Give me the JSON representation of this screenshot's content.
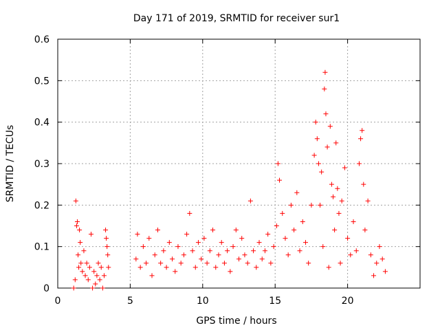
{
  "chart_data": {
    "type": "scatter",
    "title": "Day 171 of 2019, SRMTID for receiver sur1",
    "xlabel": "GPS time / hours",
    "ylabel": "SRMTID / TECUs",
    "xlim": [
      0,
      25
    ],
    "ylim": [
      0,
      0.6
    ],
    "xticks": [
      0,
      5,
      10,
      15,
      20
    ],
    "xtick_labels": [
      "0",
      "5",
      "10",
      "15",
      "20"
    ],
    "yticks": [
      0,
      0.1,
      0.2,
      0.3,
      0.4,
      0.5,
      0.6
    ],
    "ytick_labels": [
      "0",
      "0.1",
      "0.2",
      "0.3",
      "0.4",
      "0.5",
      "0.6"
    ],
    "grid": true,
    "marker": "+",
    "color": "#ff0000",
    "series": [
      {
        "name": "sur1",
        "points": [
          [
            1.1,
            0.0
          ],
          [
            1.2,
            0.02
          ],
          [
            1.25,
            0.21
          ],
          [
            1.3,
            0.15
          ],
          [
            1.35,
            0.16
          ],
          [
            1.4,
            0.08
          ],
          [
            1.45,
            0.05
          ],
          [
            1.5,
            0.14
          ],
          [
            1.55,
            0.11
          ],
          [
            1.6,
            0.06
          ],
          [
            1.7,
            0.04
          ],
          [
            1.8,
            0.09
          ],
          [
            1.9,
            0.03
          ],
          [
            2.0,
            0.06
          ],
          [
            2.1,
            0.02
          ],
          [
            2.2,
            0.05
          ],
          [
            2.3,
            0.13
          ],
          [
            2.4,
            0.0
          ],
          [
            2.5,
            0.04
          ],
          [
            2.6,
            0.01
          ],
          [
            2.7,
            0.03
          ],
          [
            2.8,
            0.06
          ],
          [
            2.9,
            0.02
          ],
          [
            3.0,
            0.05
          ],
          [
            3.1,
            0.0
          ],
          [
            3.2,
            0.03
          ],
          [
            3.3,
            0.14
          ],
          [
            3.35,
            0.12
          ],
          [
            3.4,
            0.1
          ],
          [
            3.45,
            0.08
          ],
          [
            3.5,
            0.05
          ],
          [
            5.4,
            0.07
          ],
          [
            5.5,
            0.13
          ],
          [
            5.7,
            0.05
          ],
          [
            5.9,
            0.1
          ],
          [
            6.1,
            0.06
          ],
          [
            6.3,
            0.12
          ],
          [
            6.5,
            0.03
          ],
          [
            6.7,
            0.08
          ],
          [
            6.9,
            0.14
          ],
          [
            7.1,
            0.06
          ],
          [
            7.3,
            0.09
          ],
          [
            7.5,
            0.05
          ],
          [
            7.7,
            0.11
          ],
          [
            7.9,
            0.07
          ],
          [
            8.1,
            0.04
          ],
          [
            8.3,
            0.1
          ],
          [
            8.5,
            0.06
          ],
          [
            8.7,
            0.08
          ],
          [
            8.9,
            0.13
          ],
          [
            9.1,
            0.18
          ],
          [
            9.3,
            0.09
          ],
          [
            9.5,
            0.05
          ],
          [
            9.7,
            0.11
          ],
          [
            9.9,
            0.07
          ],
          [
            10.1,
            0.12
          ],
          [
            10.3,
            0.06
          ],
          [
            10.5,
            0.09
          ],
          [
            10.7,
            0.14
          ],
          [
            10.9,
            0.05
          ],
          [
            11.1,
            0.08
          ],
          [
            11.3,
            0.11
          ],
          [
            11.5,
            0.06
          ],
          [
            11.7,
            0.09
          ],
          [
            11.9,
            0.04
          ],
          [
            12.1,
            0.1
          ],
          [
            12.3,
            0.14
          ],
          [
            12.5,
            0.07
          ],
          [
            12.7,
            0.12
          ],
          [
            12.9,
            0.08
          ],
          [
            13.1,
            0.06
          ],
          [
            13.3,
            0.21
          ],
          [
            13.5,
            0.09
          ],
          [
            13.7,
            0.05
          ],
          [
            13.9,
            0.11
          ],
          [
            14.1,
            0.07
          ],
          [
            14.3,
            0.09
          ],
          [
            14.5,
            0.13
          ],
          [
            14.7,
            0.06
          ],
          [
            14.9,
            0.1
          ],
          [
            15.1,
            0.15
          ],
          [
            15.2,
            0.3
          ],
          [
            15.3,
            0.26
          ],
          [
            15.5,
            0.18
          ],
          [
            15.7,
            0.12
          ],
          [
            15.9,
            0.08
          ],
          [
            16.1,
            0.2
          ],
          [
            16.3,
            0.14
          ],
          [
            16.5,
            0.23
          ],
          [
            16.7,
            0.09
          ],
          [
            16.9,
            0.16
          ],
          [
            17.1,
            0.11
          ],
          [
            17.3,
            0.06
          ],
          [
            17.5,
            0.2
          ],
          [
            17.7,
            0.32
          ],
          [
            17.8,
            0.4
          ],
          [
            17.9,
            0.36
          ],
          [
            18.0,
            0.3
          ],
          [
            18.1,
            0.2
          ],
          [
            18.2,
            0.28
          ],
          [
            18.3,
            0.1
          ],
          [
            18.4,
            0.48
          ],
          [
            18.45,
            0.52
          ],
          [
            18.5,
            0.42
          ],
          [
            18.6,
            0.34
          ],
          [
            18.7,
            0.05
          ],
          [
            18.8,
            0.39
          ],
          [
            18.9,
            0.25
          ],
          [
            19.0,
            0.22
          ],
          [
            19.1,
            0.14
          ],
          [
            19.2,
            0.35
          ],
          [
            19.3,
            0.24
          ],
          [
            19.4,
            0.18
          ],
          [
            19.5,
            0.06
          ],
          [
            19.6,
            0.21
          ],
          [
            19.8,
            0.29
          ],
          [
            20.0,
            0.12
          ],
          [
            20.2,
            0.08
          ],
          [
            20.4,
            0.16
          ],
          [
            20.6,
            0.09
          ],
          [
            20.8,
            0.3
          ],
          [
            20.9,
            0.36
          ],
          [
            21.0,
            0.38
          ],
          [
            21.1,
            0.25
          ],
          [
            21.2,
            0.14
          ],
          [
            21.4,
            0.21
          ],
          [
            21.6,
            0.08
          ],
          [
            21.8,
            0.03
          ],
          [
            22.0,
            0.06
          ],
          [
            22.2,
            0.1
          ],
          [
            22.4,
            0.07
          ],
          [
            22.6,
            0.04
          ]
        ]
      }
    ]
  }
}
